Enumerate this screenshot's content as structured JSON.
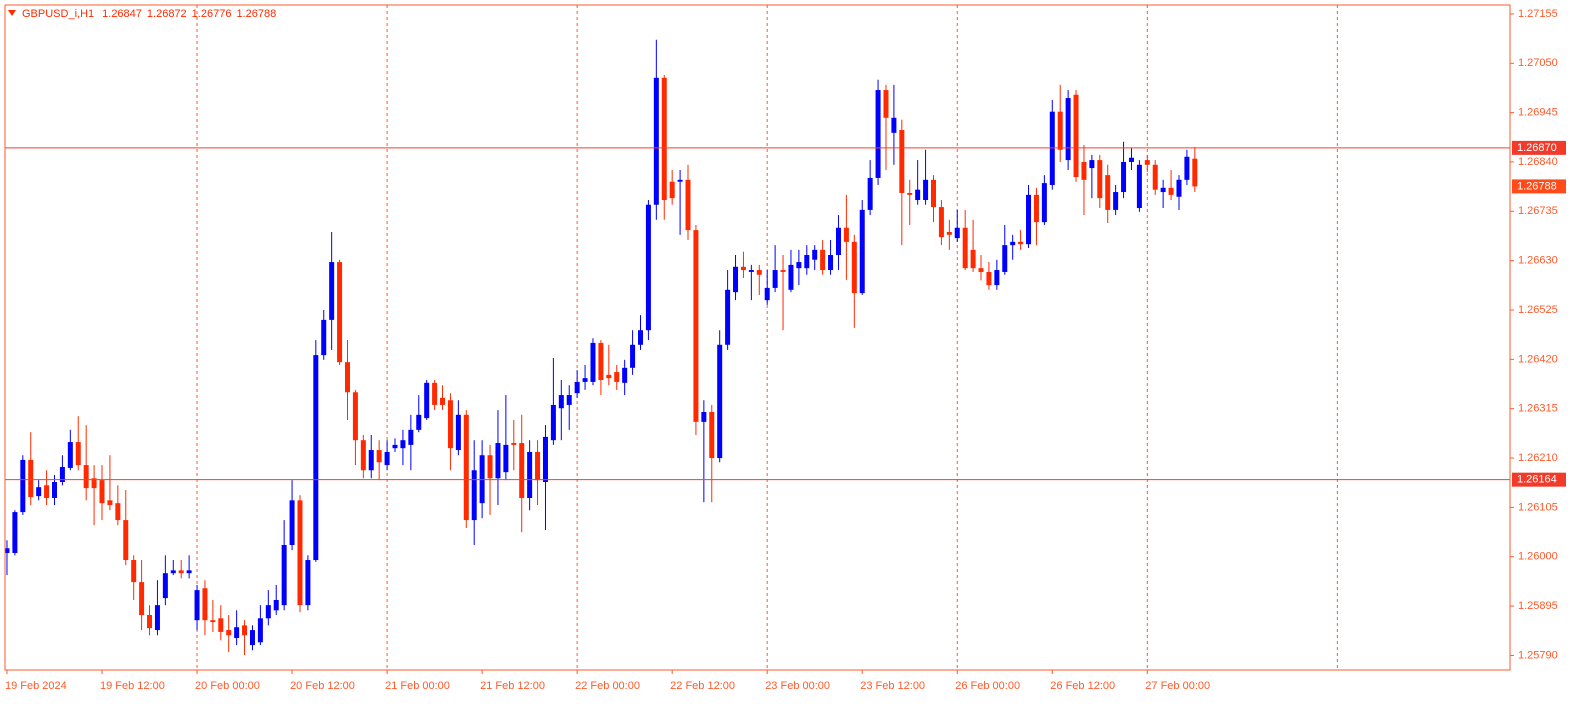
{
  "chart_data": {
    "type": "candlestick",
    "title": "GBPUSD_i,H1",
    "up_color": "#0000ff",
    "down_color": "#ff2a00",
    "axis_color": "#ff5a2a",
    "xlim": [
      -0.25,
      189.8
    ],
    "ylim": [
      1.25759,
      1.27174
    ],
    "xticks": [
      {
        "value": 0,
        "label": "19 Feb 2024"
      },
      {
        "value": 12,
        "label": "19 Feb 12:00"
      },
      {
        "value": 24,
        "label": "20 Feb 00:00"
      },
      {
        "value": 36,
        "label": "20 Feb 12:00"
      },
      {
        "value": 48,
        "label": "21 Feb 00:00"
      },
      {
        "value": 60,
        "label": "21 Feb 12:00"
      },
      {
        "value": 72,
        "label": "22 Feb 00:00"
      },
      {
        "value": 84,
        "label": "22 Feb 12:00"
      },
      {
        "value": 96,
        "label": "23 Feb 00:00"
      },
      {
        "value": 108,
        "label": "23 Feb 12:00"
      },
      {
        "value": 120,
        "label": "26 Feb 00:00"
      },
      {
        "value": 132,
        "label": "26 Feb 12:00"
      },
      {
        "value": 144,
        "label": "27 Feb 00:00"
      }
    ],
    "xgrid": [
      24,
      48,
      72,
      96,
      120,
      144,
      168
    ],
    "yticks": [
      1.27155,
      {
        "value": 1.2705,
        "label": "1.27050"
      },
      1.26945,
      {
        "value": 1.2684,
        "label": "1.26840"
      },
      1.26735,
      {
        "value": 1.2663,
        "label": "1.26630"
      },
      1.26525,
      {
        "value": 1.2642,
        "label": "1.26420"
      },
      1.26315,
      {
        "value": 1.2621,
        "label": "1.26210"
      },
      1.26105,
      {
        "value": 1.26,
        "label": "1.26000"
      },
      1.25895,
      {
        "value": 1.2579,
        "label": "1.25790"
      }
    ],
    "hlines": [
      {
        "value": 1.2687,
        "label": "1.26870"
      },
      1.26164
    ],
    "open": [
      1.26008,
      1.26008,
      1.26095,
      1.26206,
      1.26129,
      1.26152,
      1.26125,
      1.26159,
      1.26189,
      1.26244,
      1.26195,
      1.26167,
      1.26163,
      1.2612,
      1.26114,
      1.26078,
      1.25993,
      1.25946,
      1.25876,
      1.25844,
      1.25912,
      1.25965,
      1.25971,
      1.25965,
      1.25865,
      1.25933,
      1.25865,
      1.25869,
      1.25844,
      1.25827,
      1.25854,
      1.25812,
      1.25818,
      1.25869,
      1.25886,
      1.25897,
      1.26025,
      1.2612,
      1.25897,
      1.25993,
      1.26429,
      1.26504,
      1.26627,
      1.26414,
      1.2635,
      1.26248,
      1.26184,
      1.26227,
      1.26195,
      1.26231,
      1.26231,
      1.26238,
      1.2627,
      1.26295,
      1.2637,
      1.26338,
      1.26333,
      1.26227,
      1.26302,
      1.26078,
      1.26114,
      1.26216,
      1.26167,
      1.2618,
      1.26242,
      1.26242,
      1.26125,
      1.26223,
      1.26159,
      1.26248,
      1.26316,
      1.26323,
      1.26348,
      1.26372,
      1.26372,
      1.26455,
      1.26387,
      1.26393,
      1.2637,
      1.26402,
      1.26451,
      1.26482,
      1.26749,
      1.27019,
      1.26798,
      1.26798,
      1.26802,
      1.26695,
      1.26287,
      1.26308,
      1.2621,
      1.26451,
      1.26563,
      1.26617,
      1.26606,
      1.2661,
      1.26546,
      1.26572,
      1.2661,
      1.26568,
      1.26614,
      1.26614,
      1.26632,
      1.26653,
      1.2661,
      1.26642,
      1.267,
      1.2667,
      1.26561,
      1.26738,
      1.26806,
      1.26993,
      1.26902,
      1.26908,
      1.26774,
      1.26759,
      1.26759,
      1.26802,
      1.26744,
      1.26691,
      1.26678,
      1.267,
      1.26653,
      1.26614,
      1.26606,
      1.26578,
      1.26606,
      1.26663,
      1.2667,
      1.26665,
      1.2677,
      1.26712,
      1.26791,
      1.26947,
      1.26844,
      1.26983,
      1.2684,
      1.26827,
      1.26844,
      1.26812,
      1.26738,
      1.26776,
      1.2684,
      1.26742,
      1.26844,
      1.26834,
      1.26776,
      1.26785,
      1.26766,
      1.26802,
      1.26847
    ],
    "high": [
      1.26035,
      1.26099,
      1.26216,
      1.26265,
      1.26163,
      1.26184,
      1.26174,
      1.26216,
      1.2627,
      1.26299,
      1.2628,
      1.26195,
      1.26195,
      1.26216,
      1.26152,
      1.26142,
      1.26003,
      1.25993,
      1.25897,
      1.2595,
      1.26003,
      1.25993,
      1.25993,
      1.26003,
      1.2594,
      1.2595,
      1.25908,
      1.25897,
      1.25876,
      1.25886,
      1.25865,
      1.25854,
      1.25897,
      1.25929,
      1.2594,
      1.26078,
      1.26163,
      1.26131,
      1.26003,
      1.26461,
      1.26525,
      1.26691,
      1.26632,
      1.26461,
      1.26355,
      1.26259,
      1.26259,
      1.26248,
      1.26248,
      1.26252,
      1.2627,
      1.26302,
      1.26344,
      1.26376,
      1.26376,
      1.26365,
      1.26348,
      1.26333,
      1.26312,
      1.26248,
      1.26248,
      1.26238,
      1.26312,
      1.26344,
      1.26291,
      1.26302,
      1.26248,
      1.26248,
      1.2628,
      1.26423,
      1.26376,
      1.26365,
      1.26397,
      1.26408,
      1.26465,
      1.26461,
      1.26451,
      1.26408,
      1.26419,
      1.26482,
      1.26514,
      1.26759,
      1.271,
      1.27025,
      1.26823,
      1.26823,
      1.26834,
      1.26706,
      1.26333,
      1.26323,
      1.26482,
      1.2661,
      1.26642,
      1.26649,
      1.26621,
      1.26621,
      1.2661,
      1.26663,
      1.26642,
      1.26653,
      1.26653,
      1.26663,
      1.26663,
      1.26674,
      1.26674,
      1.26727,
      1.2677,
      1.26685,
      1.26759,
      1.26844,
      1.27015,
      1.27004,
      1.27004,
      1.2693,
      1.26802,
      1.26844,
      1.26866,
      1.26812,
      1.26759,
      1.26717,
      1.26738,
      1.26738,
      1.26717,
      1.26642,
      1.26627,
      1.26632,
      1.26706,
      1.26685,
      1.26695,
      1.26791,
      1.26785,
      1.26812,
      1.26972,
      1.27004,
      1.26993,
      1.26993,
      1.26876,
      1.26855,
      1.26855,
      1.26834,
      1.26791,
      1.26883,
      1.2687,
      1.26844,
      1.26855,
      1.26844,
      1.26802,
      1.26823,
      1.26812,
      1.26866,
      1.26872
    ],
    "low": [
      1.25961,
      1.26003,
      1.26089,
      1.2611,
      1.2612,
      1.2611,
      1.2611,
      1.26152,
      1.26184,
      1.26184,
      1.2612,
      1.26067,
      1.26078,
      1.26099,
      1.26067,
      1.25982,
      1.25908,
      1.25844,
      1.25833,
      1.25833,
      1.25897,
      1.25961,
      1.25954,
      1.25954,
      1.25844,
      1.25833,
      1.2584,
      1.25822,
      1.25797,
      1.25812,
      1.25791,
      1.25801,
      1.25812,
      1.25854,
      1.25876,
      1.25886,
      1.26014,
      1.25882,
      1.25886,
      1.25989,
      1.26419,
      1.2644,
      1.26408,
      1.26291,
      1.26195,
      1.26167,
      1.26167,
      1.26163,
      1.26184,
      1.26223,
      1.26195,
      1.26184,
      1.26265,
      1.26291,
      1.26312,
      1.26312,
      1.26184,
      1.26216,
      1.26061,
      1.26025,
      1.26082,
      1.26089,
      1.2611,
      1.26163,
      1.26184,
      1.26052,
      1.26099,
      1.2611,
      1.26057,
      1.26238,
      1.26248,
      1.2627,
      1.26338,
      1.26355,
      1.26365,
      1.26344,
      1.26365,
      1.26355,
      1.26344,
      1.26387,
      1.2644,
      1.26461,
      1.26717,
      1.26717,
      1.26749,
      1.26685,
      1.26674,
      1.26259,
      1.26116,
      1.26116,
      1.26201,
      1.2644,
      1.26546,
      1.26593,
      1.26546,
      1.26557,
      1.26536,
      1.26563,
      1.26482,
      1.26563,
      1.26578,
      1.266,
      1.2661,
      1.266,
      1.266,
      1.2661,
      1.26589,
      1.26487,
      1.26557,
      1.26727,
      1.26791,
      1.26823,
      1.26834,
      1.26663,
      1.26706,
      1.26749,
      1.26749,
      1.26712,
      1.26663,
      1.26653,
      1.2667,
      1.2661,
      1.26606,
      1.26588,
      1.26568,
      1.26568,
      1.266,
      1.26632,
      1.26653,
      1.26657,
      1.26663,
      1.26706,
      1.26781,
      1.2684,
      1.26823,
      1.26798,
      1.26727,
      1.26763,
      1.26742,
      1.2671,
      1.26727,
      1.26763,
      1.26823,
      1.26734,
      1.26819,
      1.2677,
      1.26742,
      1.26759,
      1.26738,
      1.26791,
      1.26776
    ],
    "close": [
      1.26018,
      1.26095,
      1.26206,
      1.26127,
      1.26148,
      1.26125,
      1.26159,
      1.26191,
      1.26244,
      1.26195,
      1.26146,
      1.26146,
      1.26114,
      1.2611,
      1.26078,
      1.25993,
      1.25946,
      1.25876,
      1.25848,
      1.25897,
      1.25965,
      1.25971,
      1.25965,
      1.25971,
      1.25929,
      1.25865,
      1.25861,
      1.2584,
      1.25833,
      1.2585,
      1.25833,
      1.25844,
      1.25869,
      1.25897,
      1.25908,
      1.26025,
      1.2612,
      1.25897,
      1.25993,
      1.26429,
      1.26504,
      1.26627,
      1.26414,
      1.2635,
      1.26248,
      1.26184,
      1.26227,
      1.26201,
      1.26223,
      1.26238,
      1.26248,
      1.2627,
      1.26302,
      1.2637,
      1.26323,
      1.26323,
      1.26231,
      1.26302,
      1.26078,
      1.26184,
      1.26216,
      1.26167,
      1.26242,
      1.26238,
      1.26238,
      1.26125,
      1.26223,
      1.26163,
      1.26255,
      1.26323,
      1.26344,
      1.26344,
      1.26372,
      1.2638,
      1.26455,
      1.26376,
      1.2638,
      1.26372,
      1.26402,
      1.26451,
      1.26482,
      1.26749,
      1.27019,
      1.26759,
      1.26763,
      1.26802,
      1.26695,
      1.26287,
      1.26308,
      1.2621,
      1.26451,
      1.26568,
      1.26617,
      1.2661,
      1.2661,
      1.266,
      1.26572,
      1.2661,
      1.26606,
      1.26621,
      1.26627,
      1.26642,
      1.26653,
      1.2661,
      1.26642,
      1.267,
      1.2667,
      1.26561,
      1.26738,
      1.26806,
      1.26993,
      1.26934,
      1.26934,
      1.26774,
      1.2677,
      1.26781,
      1.26802,
      1.26744,
      1.2668,
      1.26685,
      1.267,
      1.26614,
      1.26614,
      1.26606,
      1.26578,
      1.2661,
      1.26663,
      1.2667,
      1.26665,
      1.2677,
      1.26712,
      1.26795,
      1.26947,
      1.26866,
      1.26976,
      1.26808,
      1.26802,
      1.26844,
      1.26763,
      1.26738,
      1.26776,
      1.2684,
      1.26849,
      1.26834,
      1.26834,
      1.26781,
      1.26785,
      1.2677,
      1.26802,
      1.26851,
      1.26788
    ]
  }
}
